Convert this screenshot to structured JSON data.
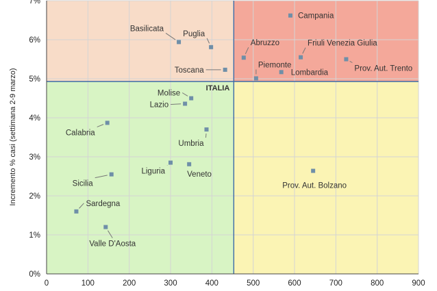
{
  "chart_data": {
    "type": "scatter",
    "xlabel": "",
    "ylabel": "Incremento % casi (settimana 2-9 marzo)",
    "xlim": [
      0,
      900
    ],
    "ylim": [
      0,
      7
    ],
    "x_ticks": [
      0,
      100,
      200,
      300,
      400,
      500,
      600,
      700,
      800,
      900
    ],
    "y_ticks": [
      0,
      1,
      2,
      3,
      4,
      5,
      6,
      7
    ],
    "y_tick_labels": [
      "0%",
      "1%",
      "2%",
      "3%",
      "4%",
      "5%",
      "6%",
      "7%"
    ],
    "grid": true,
    "reference": {
      "label": "ITALIA",
      "x": 453,
      "y": 4.93
    },
    "quadrant_colors": {
      "top_left": "#f8dcc8",
      "top_right": "#f4a89a",
      "bottom_left": "#d8f4c4",
      "bottom_right": "#fbf4b4"
    },
    "marker_color": "#6f8fa8",
    "reference_line_color": "#3d6aa6",
    "points": [
      {
        "label": "Campania",
        "x": 590,
        "y": 6.62
      },
      {
        "label": "Basilicata",
        "x": 320,
        "y": 5.94
      },
      {
        "label": "Puglia",
        "x": 398,
        "y": 5.81
      },
      {
        "label": "Abruzzo",
        "x": 477,
        "y": 5.54
      },
      {
        "label": "Friuli Venezia Giulia",
        "x": 615,
        "y": 5.55
      },
      {
        "label": "Prov. Aut. Trento",
        "x": 725,
        "y": 5.5
      },
      {
        "label": "Toscana",
        "x": 432,
        "y": 5.23
      },
      {
        "label": "Lombardia",
        "x": 568,
        "y": 5.17
      },
      {
        "label": "Piemonte",
        "x": 507,
        "y": 5.01
      },
      {
        "label": "Molise",
        "x": 350,
        "y": 4.5
      },
      {
        "label": "Lazio",
        "x": 335,
        "y": 4.36
      },
      {
        "label": "Calabria",
        "x": 147,
        "y": 3.87
      },
      {
        "label": "Umbria",
        "x": 387,
        "y": 3.7
      },
      {
        "label": "Liguria",
        "x": 300,
        "y": 2.85
      },
      {
        "label": "Veneto",
        "x": 345,
        "y": 2.81
      },
      {
        "label": "Prov. Aut. Bolzano",
        "x": 645,
        "y": 2.64
      },
      {
        "label": "Sicilia",
        "x": 157,
        "y": 2.55
      },
      {
        "label": "Sardegna",
        "x": 72,
        "y": 1.6
      },
      {
        "label": "Valle D'Aosta",
        "x": 143,
        "y": 1.2
      }
    ]
  }
}
